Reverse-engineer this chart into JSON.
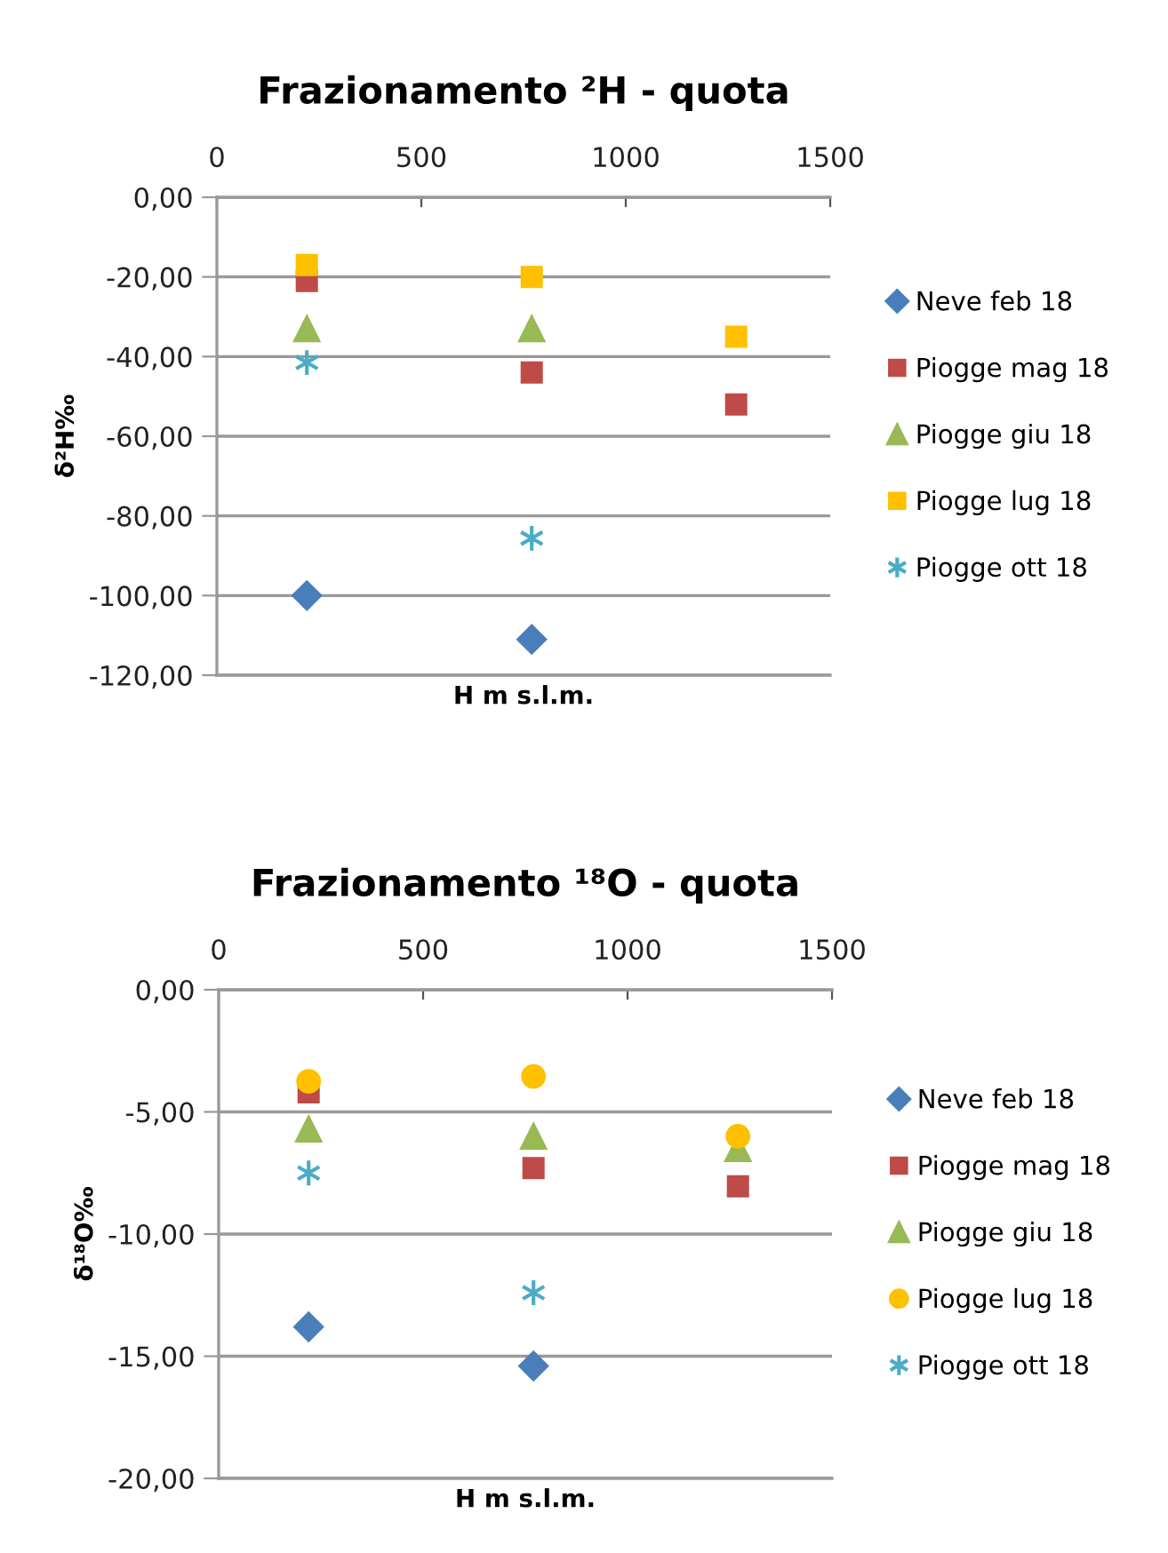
{
  "chart_data": [
    {
      "type": "scatter",
      "title": "Frazionamento ²H - quota",
      "xlabel": "H m s.l.m.",
      "ylabel": "δ²H‰",
      "xlim": [
        0,
        1500
      ],
      "xticks": [
        0,
        500,
        1000,
        1500
      ],
      "ylim": [
        -120,
        0
      ],
      "yticks": [
        {
          "value": -120,
          "label": "-120,00"
        },
        {
          "value": -100,
          "label": "-100,00"
        },
        {
          "value": -80,
          "label": "-80,00"
        },
        {
          "value": -60,
          "label": "-60,00"
        },
        {
          "value": -40,
          "label": "-40,00"
        },
        {
          "value": -20,
          "label": "-20,00"
        },
        {
          "value": 0,
          "label": "0,00"
        }
      ],
      "grid": "y",
      "legend": "right",
      "series": [
        {
          "name": "Neve feb 18",
          "color": "#4a7ebb",
          "marker": "diamond",
          "x": [
            220,
            770
          ],
          "values": [
            -100,
            -111
          ]
        },
        {
          "name": "Piogge mag 18",
          "color": "#be4b48",
          "marker": "square",
          "x": [
            220,
            770,
            1270
          ],
          "values": [
            -21,
            -44,
            -52
          ]
        },
        {
          "name": "Piogge giu 18",
          "color": "#98b954",
          "marker": "triangle",
          "x": [
            220,
            770
          ],
          "values": [
            -33,
            -33
          ]
        },
        {
          "name": "Piogge lug 18",
          "color": "#ffc000",
          "marker": "square",
          "x": [
            220,
            770,
            1270
          ],
          "values": [
            -17,
            -20,
            -35
          ]
        },
        {
          "name": "Piogge ott 18",
          "color": "#4bacc6",
          "marker": "cross",
          "x": [
            220,
            770
          ],
          "values": [
            -41.5,
            -85.6
          ]
        }
      ]
    },
    {
      "type": "scatter",
      "title": "Frazionamento ¹⁸O - quota",
      "xlabel": "H m s.l.m.",
      "ylabel": "δ¹⁸O‰",
      "xlim": [
        0,
        1500
      ],
      "xticks": [
        0,
        500,
        1000,
        1500
      ],
      "ylim": [
        -20,
        0
      ],
      "yticks": [
        {
          "value": -20,
          "label": "-20,00"
        },
        {
          "value": -15,
          "label": "-15,00"
        },
        {
          "value": -10,
          "label": "-10,00"
        },
        {
          "value": -5,
          "label": "-5,00"
        },
        {
          "value": 0,
          "label": "0,00"
        }
      ],
      "grid": "y",
      "legend": "right",
      "series": [
        {
          "name": "Neve feb 18",
          "color": "#4a7ebb",
          "marker": "diamond",
          "x": [
            220,
            770
          ],
          "values": [
            -13.8,
            -15.4
          ]
        },
        {
          "name": "Piogge mag 18",
          "color": "#be4b48",
          "marker": "square",
          "x": [
            220,
            770,
            1270
          ],
          "values": [
            -4.2,
            -7.3,
            -8.05
          ]
        },
        {
          "name": "Piogge giu 18",
          "color": "#98b954",
          "marker": "triangle",
          "x": [
            220,
            770,
            1270
          ],
          "values": [
            -5.7,
            -6.0,
            -6.5
          ]
        },
        {
          "name": "Piogge lug 18",
          "color": "#ffc000",
          "marker": "circle",
          "x": [
            220,
            770,
            1270
          ],
          "values": [
            -3.75,
            -3.55,
            -6.0
          ]
        },
        {
          "name": "Piogge ott 18",
          "color": "#4bacc6",
          "marker": "cross",
          "x": [
            220,
            770
          ],
          "values": [
            -7.5,
            -12.4
          ]
        }
      ]
    }
  ]
}
